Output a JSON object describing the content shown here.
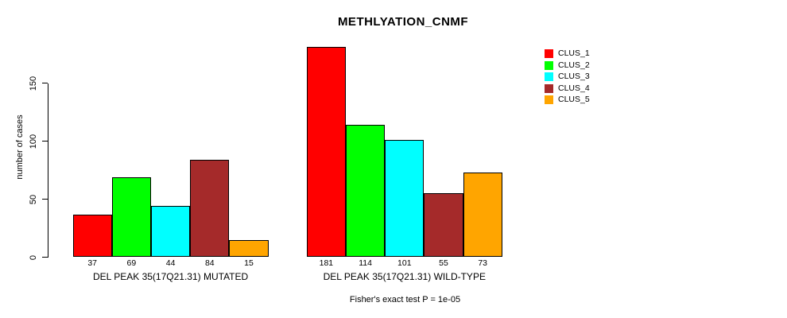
{
  "chart_data": {
    "type": "bar",
    "title": "METHLYATION_CNMF",
    "ylabel": "number of cases",
    "yticks": [
      0,
      50,
      100,
      150
    ],
    "ylim": [
      0,
      185
    ],
    "grid": false,
    "legend_position": "top-right",
    "bar_value_labels": true,
    "categories": [
      "DEL PEAK 35(17Q21.31) MUTATED",
      "DEL PEAK 35(17Q21.31) WILD-TYPE"
    ],
    "series": [
      {
        "name": "CLUS_1",
        "color": "#ff0000",
        "values": [
          37,
          181
        ]
      },
      {
        "name": "CLUS_2",
        "color": "#00ff00",
        "values": [
          69,
          114
        ]
      },
      {
        "name": "CLUS_3",
        "color": "#00ffff",
        "values": [
          44,
          101
        ]
      },
      {
        "name": "CLUS_4",
        "color": "#a52a2a",
        "values": [
          84,
          55
        ]
      },
      {
        "name": "CLUS_5",
        "color": "#ffa500",
        "values": [
          15,
          73
        ]
      }
    ],
    "annotation": "Fisher's exact test P = 1e-05"
  }
}
